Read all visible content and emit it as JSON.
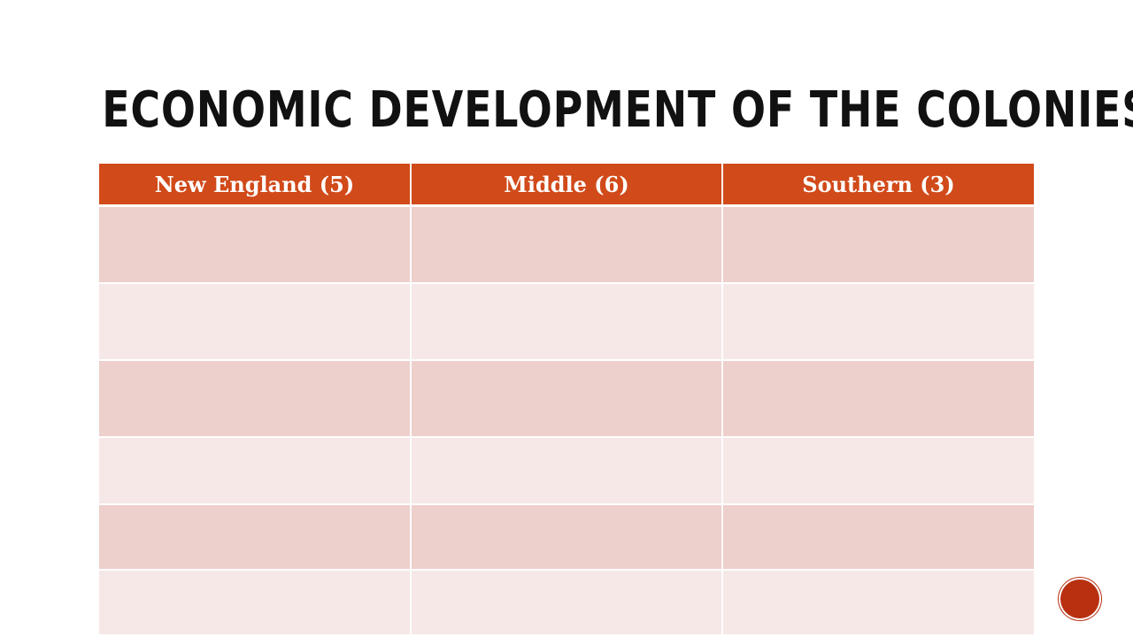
{
  "header": {
    "title": "Economic Development of the Colonies"
  },
  "table": {
    "columns": [
      "New England (5)",
      "Middle (6)",
      "Southern (3)"
    ]
  }
}
